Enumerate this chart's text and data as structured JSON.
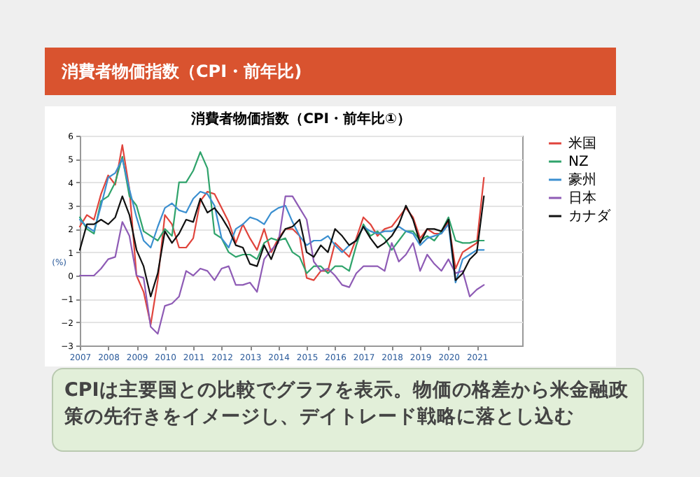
{
  "chart_data": {
    "type": "line",
    "title": "消費者物価指数（CPI・前年比)",
    "subtitle": "消費者物価指数（CPI・前年比①）",
    "ylabel": "(%)",
    "annotations": [
      "CPIは主要国との比較でグラフを表示。物価の格差から米金融政策の先行きをイメージし、デイトレード戦略に落とし込む"
    ],
    "x": [
      2007,
      2007.25,
      2007.5,
      2007.75,
      2008,
      2008.25,
      2008.5,
      2008.75,
      2009,
      2009.25,
      2009.5,
      2009.75,
      2010,
      2010.25,
      2010.5,
      2010.75,
      2011,
      2011.25,
      2011.5,
      2011.75,
      2012,
      2012.25,
      2012.5,
      2012.75,
      2013,
      2013.25,
      2013.5,
      2013.75,
      2014,
      2014.25,
      2014.5,
      2014.75,
      2015,
      2015.25,
      2015.5,
      2015.75,
      2016,
      2016.25,
      2016.5,
      2016.75,
      2017,
      2017.25,
      2017.5,
      2017.75,
      2018,
      2018.25,
      2018.5,
      2018.75,
      2019,
      2019.25,
      2019.5,
      2019.75,
      2020,
      2020.25,
      2020.5,
      2020.75,
      2021,
      2021.25
    ],
    "series": [
      {
        "name": "米国",
        "color": "#e0443c",
        "values": [
          2.1,
          2.6,
          2.4,
          3.5,
          4.3,
          3.9,
          5.6,
          3.7,
          0.0,
          -0.7,
          -2.1,
          -0.2,
          2.6,
          2.2,
          1.2,
          1.2,
          1.6,
          3.2,
          3.6,
          3.5,
          2.9,
          2.3,
          1.4,
          2.2,
          1.6,
          1.1,
          2.0,
          1.0,
          1.6,
          2.0,
          2.0,
          1.7,
          -0.1,
          -0.2,
          0.2,
          0.2,
          1.4,
          1.1,
          0.8,
          1.6,
          2.5,
          2.2,
          1.7,
          2.0,
          2.1,
          2.5,
          2.9,
          2.5,
          1.6,
          2.0,
          1.8,
          1.8,
          2.3,
          0.3,
          1.0,
          1.2,
          1.4,
          4.2
        ]
      },
      {
        "name": "NZ",
        "color": "#2fa36b",
        "values": [
          2.5,
          2.0,
          1.8,
          3.2,
          3.4,
          4.0,
          5.1,
          3.4,
          3.0,
          1.9,
          1.7,
          1.5,
          2.0,
          1.7,
          4.0,
          4.0,
          4.5,
          5.3,
          4.6,
          1.8,
          1.6,
          1.0,
          0.8,
          0.9,
          0.9,
          0.7,
          1.4,
          1.6,
          1.5,
          1.6,
          1.0,
          0.8,
          0.1,
          0.4,
          0.4,
          0.1,
          0.4,
          0.4,
          0.2,
          1.3,
          2.2,
          1.7,
          1.9,
          1.6,
          1.1,
          1.5,
          1.9,
          1.9,
          1.5,
          1.7,
          1.5,
          1.9,
          2.5,
          1.5,
          1.4,
          1.4,
          1.5,
          1.5
        ]
      },
      {
        "name": "豪州",
        "color": "#3b8fd0",
        "values": [
          2.4,
          2.1,
          1.9,
          3.0,
          4.2,
          4.4,
          5.0,
          3.7,
          2.5,
          1.5,
          1.2,
          2.1,
          2.9,
          3.1,
          2.8,
          2.7,
          3.3,
          3.6,
          3.5,
          3.0,
          1.6,
          1.2,
          2.0,
          2.2,
          2.5,
          2.4,
          2.2,
          2.7,
          2.9,
          3.0,
          2.3,
          1.7,
          1.3,
          1.5,
          1.5,
          1.7,
          1.3,
          1.0,
          1.3,
          1.5,
          2.1,
          1.9,
          1.8,
          1.9,
          1.9,
          2.1,
          1.9,
          1.8,
          1.3,
          1.6,
          1.7,
          1.8,
          2.2,
          -0.3,
          0.7,
          0.9,
          1.1,
          1.1
        ]
      },
      {
        "name": "日本",
        "color": "#8e5bb5",
        "values": [
          0.0,
          0.0,
          0.0,
          0.3,
          0.7,
          0.8,
          2.3,
          1.7,
          0.0,
          -0.1,
          -2.2,
          -2.5,
          -1.3,
          -1.2,
          -0.9,
          0.2,
          0.0,
          0.3,
          0.2,
          -0.2,
          0.3,
          0.4,
          -0.4,
          -0.4,
          -0.3,
          -0.7,
          0.7,
          1.1,
          1.4,
          3.4,
          3.4,
          2.9,
          2.4,
          0.6,
          0.2,
          0.3,
          0.0,
          -0.4,
          -0.5,
          0.1,
          0.4,
          0.4,
          0.4,
          0.2,
          1.4,
          0.6,
          0.9,
          1.4,
          0.2,
          0.9,
          0.5,
          0.2,
          0.7,
          0.1,
          0.2,
          -0.9,
          -0.6,
          -0.4
        ]
      },
      {
        "name": "カナダ",
        "color": "#111111",
        "values": [
          1.1,
          2.2,
          2.2,
          2.4,
          2.2,
          2.5,
          3.4,
          2.6,
          1.1,
          0.4,
          -0.9,
          0.1,
          1.9,
          1.4,
          1.8,
          2.4,
          2.3,
          3.3,
          2.7,
          2.9,
          2.5,
          2.0,
          1.3,
          1.2,
          0.5,
          0.4,
          1.3,
          0.7,
          1.5,
          2.0,
          2.1,
          2.4,
          1.0,
          0.8,
          1.3,
          1.0,
          2.0,
          1.7,
          1.3,
          1.5,
          2.1,
          1.6,
          1.2,
          1.4,
          1.7,
          2.2,
          3.0,
          2.4,
          1.4,
          2.0,
          2.0,
          1.9,
          2.4,
          -0.2,
          0.1,
          0.7,
          1.0,
          3.4
        ]
      }
    ],
    "xlim": [
      2007,
      2022.6
    ],
    "xticks": [
      2007,
      2008,
      2009,
      2010,
      2011,
      2012,
      2013,
      2014,
      2015,
      2016,
      2017,
      2018,
      2019,
      2020,
      2021
    ],
    "ylim": [
      -3,
      6
    ],
    "yticks": [
      -3,
      -2,
      -1,
      0,
      1,
      2,
      3,
      4,
      5,
      6
    ],
    "grid": "y",
    "legend": "right"
  }
}
